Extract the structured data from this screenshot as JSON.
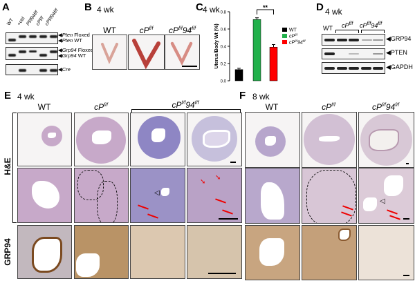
{
  "panels": {
    "A": "A",
    "B": "B",
    "C": "C",
    "D": "D",
    "E": "E",
    "F": "F"
  },
  "ages": {
    "b": "4 wk",
    "c": "4 wk",
    "d": "4 wk",
    "e": "4 wk",
    "f": "8 wk"
  },
  "genotypes": {
    "wt": "WT",
    "cp": "cP",
    "cp94_base": "cP",
    "cp94_mid": "94",
    "ff": "f/f",
    "ctrl": "+ctrl",
    "pf94": "P",
    "pf94_mid": "94"
  },
  "gel": {
    "lanes": [
      "WT",
      "+ctrl",
      "Pf/f94f/f",
      "cPf/f",
      "cPf/f94f/f"
    ],
    "labels": [
      "Pten Floxed",
      "Pten WT",
      "Grp94 Floxed",
      "Grp94 WT",
      "Cre"
    ],
    "gene_pten": "Pten",
    "gene_grp94": "Grp94",
    "floxed": " Floxed",
    "wt": " WT",
    "cre": "Cre"
  },
  "western": {
    "lane_wt": "WT",
    "labels": [
      "GRP94",
      "PTEN",
      "GAPDH"
    ]
  },
  "rows": {
    "he": "H&E",
    "grp94": "GRP94"
  },
  "chart_data": {
    "type": "bar",
    "ylabel": "Uterus/Body Wt (%)",
    "ylim": [
      0,
      0.8
    ],
    "yticks": [
      "0.0",
      "0.2",
      "0.4",
      "0.6",
      "0.8"
    ],
    "categories": [
      "WT",
      "cPf/f",
      "cPf/f94f/f"
    ],
    "values": [
      0.13,
      0.71,
      0.39
    ],
    "errors": [
      0.015,
      0.02,
      0.03
    ],
    "colors": [
      "#000000",
      "#22b14c",
      "#ff0000"
    ],
    "annotation": "**"
  }
}
